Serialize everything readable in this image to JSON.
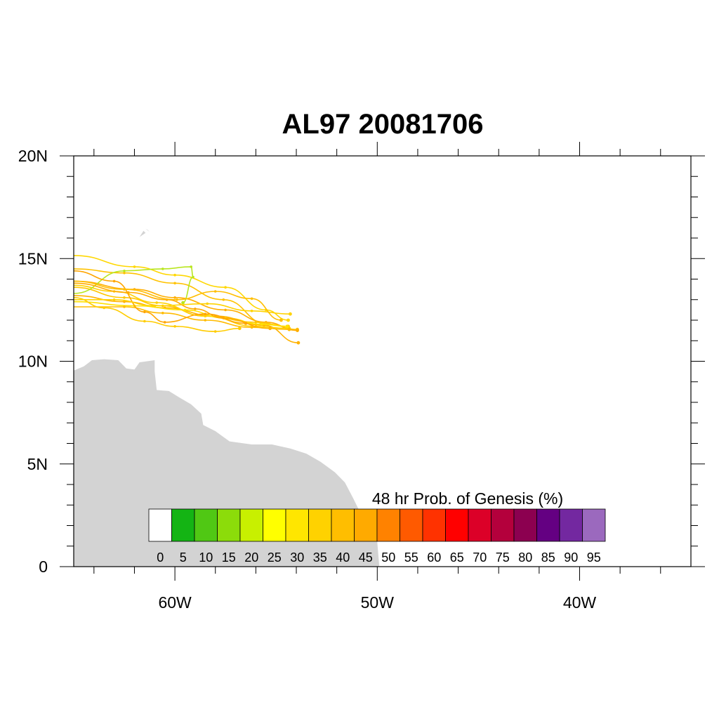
{
  "title": "AL97 20081706",
  "map": {
    "lon_range": [
      -65,
      -34.5
    ],
    "lat_range": [
      0,
      20
    ],
    "x_ticks": [
      {
        "lon": -60,
        "label": "60W"
      },
      {
        "lon": -50,
        "label": "50W"
      },
      {
        "lon": -40,
        "label": "40W"
      }
    ],
    "y_ticks": [
      {
        "lat": 0,
        "label": "0"
      },
      {
        "lat": 5,
        "label": "5N"
      },
      {
        "lat": 10,
        "label": "10N"
      },
      {
        "lat": 15,
        "label": "15N"
      },
      {
        "lat": 20,
        "label": "20N"
      }
    ],
    "land_color": "#d3d3d3",
    "land_outline": [
      [
        -65,
        9.55
      ],
      [
        -64.5,
        9.75
      ],
      [
        -64.1,
        10.05
      ],
      [
        -63.5,
        10.1
      ],
      [
        -62.8,
        10.05
      ],
      [
        -62.4,
        9.65
      ],
      [
        -62.0,
        9.6
      ],
      [
        -61.75,
        9.95
      ],
      [
        -61.0,
        10.05
      ],
      [
        -61.0,
        9.5
      ],
      [
        -60.9,
        8.6
      ],
      [
        -60.3,
        8.55
      ],
      [
        -59.8,
        8.25
      ],
      [
        -59.2,
        7.9
      ],
      [
        -58.7,
        7.45
      ],
      [
        -58.6,
        6.9
      ],
      [
        -58.0,
        6.6
      ],
      [
        -57.3,
        6.1
      ],
      [
        -56.2,
        5.95
      ],
      [
        -55.2,
        5.95
      ],
      [
        -54.3,
        5.75
      ],
      [
        -53.5,
        5.5
      ],
      [
        -52.8,
        5.1
      ],
      [
        -52.1,
        4.6
      ],
      [
        -51.6,
        4.1
      ],
      [
        -51.2,
        3.35
      ],
      [
        -50.8,
        2.55
      ],
      [
        -50.3,
        1.8
      ],
      [
        -50.0,
        1.2
      ],
      [
        -49.9,
        0
      ],
      [
        -65,
        0
      ]
    ],
    "islands": [
      [
        [
          -61.75,
          16.05
        ],
        [
          -61.55,
          16.35
        ],
        [
          -61.45,
          16.25
        ]
      ],
      [
        [
          -61.45,
          16.45
        ],
        [
          -61.35,
          16.4
        ],
        [
          -61.25,
          16.3
        ]
      ]
    ],
    "storm_tracks": [
      {
        "color": "#ffd700",
        "points": [
          [
            -65,
            15.15
          ],
          [
            -62,
            14.6
          ],
          [
            -60,
            14.2
          ],
          [
            -57.5,
            13.6
          ],
          [
            -55.5,
            12.5
          ],
          [
            -54.4,
            12.0
          ]
        ]
      },
      {
        "color": "#ffc200",
        "points": [
          [
            -65,
            14.5
          ],
          [
            -62.5,
            14.3
          ],
          [
            -60,
            13.8
          ],
          [
            -57.6,
            13.0
          ],
          [
            -55.4,
            11.8
          ],
          [
            -53.95,
            11.55
          ]
        ]
      },
      {
        "color": "#ffae00",
        "points": [
          [
            -65,
            13.9
          ],
          [
            -62,
            13.5
          ],
          [
            -60,
            13.1
          ],
          [
            -57.5,
            12.5
          ],
          [
            -55.5,
            11.9
          ],
          [
            -53.95,
            11.5
          ]
        ]
      },
      {
        "color": "#ffc600",
        "points": [
          [
            -65,
            13.6
          ],
          [
            -62.5,
            13.1
          ],
          [
            -60.6,
            12.7
          ],
          [
            -58.5,
            12.2
          ],
          [
            -56,
            11.9
          ],
          [
            -54.4,
            11.7
          ]
        ]
      },
      {
        "color": "#ffb200",
        "points": [
          [
            -65,
            13.2
          ],
          [
            -62.5,
            12.9
          ],
          [
            -60.5,
            12.6
          ],
          [
            -58,
            12.2
          ],
          [
            -55.6,
            11.75
          ],
          [
            -53.9,
            10.9
          ]
        ]
      },
      {
        "color": "#ffd100",
        "points": [
          [
            -65,
            13.7
          ],
          [
            -63,
            13.4
          ],
          [
            -60.9,
            12.85
          ],
          [
            -58.5,
            12.2
          ],
          [
            -56,
            11.7
          ],
          [
            -54.35,
            11.6
          ]
        ]
      },
      {
        "color": "#b8e61e",
        "points": [
          [
            -65,
            13.3
          ],
          [
            -62.5,
            14.4
          ],
          [
            -60.6,
            14.5
          ],
          [
            -59.2,
            14.6
          ],
          [
            -59.1,
            14.1
          ],
          [
            -59.6,
            12.85
          ]
        ]
      },
      {
        "color": "#ffe100",
        "points": [
          [
            -65,
            12.9
          ],
          [
            -62,
            12.7
          ],
          [
            -59.5,
            12.5
          ],
          [
            -57.5,
            12.1
          ],
          [
            -55.7,
            11.8
          ],
          [
            -54.45,
            11.7
          ]
        ]
      },
      {
        "color": "#ffaa00",
        "points": [
          [
            -65,
            13.8
          ],
          [
            -62.3,
            13.35
          ],
          [
            -60.4,
            13.0
          ],
          [
            -59,
            12.55
          ],
          [
            -57.6,
            12.1
          ],
          [
            -55.3,
            11.6
          ]
        ]
      },
      {
        "color": "#ffbb00",
        "points": [
          [
            -65,
            12.65
          ],
          [
            -62.5,
            12.65
          ],
          [
            -60.6,
            12.35
          ],
          [
            -58.5,
            12.0
          ],
          [
            -56.2,
            11.65
          ],
          [
            -54.35,
            11.55
          ]
        ]
      },
      {
        "color": "#ffcc00",
        "points": [
          [
            -65,
            13.1
          ],
          [
            -63.5,
            12.6
          ],
          [
            -61.5,
            11.95
          ],
          [
            -60,
            11.7
          ],
          [
            -58,
            11.45
          ],
          [
            -56.8,
            11.6
          ]
        ]
      },
      {
        "color": "#ffa500",
        "points": [
          [
            -65,
            14.4
          ],
          [
            -63,
            13.9
          ],
          [
            -61.5,
            12.4
          ],
          [
            -60.5,
            11.9
          ],
          [
            -58.5,
            12.3
          ],
          [
            -56.5,
            11.85
          ]
        ]
      },
      {
        "color": "#ffd300",
        "points": [
          [
            -65,
            13.0
          ],
          [
            -63,
            13.0
          ],
          [
            -61,
            12.7
          ],
          [
            -58.4,
            12.8
          ],
          [
            -56.2,
            12.45
          ],
          [
            -54.3,
            12.3
          ]
        ]
      },
      {
        "color": "#ffbe00",
        "points": [
          [
            -65,
            13.9
          ],
          [
            -62.5,
            13.5
          ],
          [
            -59.9,
            13.0
          ],
          [
            -58,
            13.4
          ],
          [
            -56.2,
            13.05
          ],
          [
            -54.75,
            12.0
          ]
        ]
      }
    ]
  },
  "colorbar": {
    "title": "48 hr Prob. of Genesis (%)",
    "labels": [
      "0",
      "5",
      "10",
      "15",
      "20",
      "25",
      "30",
      "35",
      "40",
      "45",
      "50",
      "55",
      "60",
      "65",
      "70",
      "75",
      "80",
      "85",
      "90",
      "95"
    ],
    "colors": [
      "#ffffff",
      "#14b414",
      "#50c814",
      "#8cdc0a",
      "#c8f000",
      "#ffff00",
      "#ffe600",
      "#ffd200",
      "#ffbe00",
      "#ffaa00",
      "#ff8200",
      "#ff5a00",
      "#ff3200",
      "#ff0000",
      "#dc0028",
      "#b4003c",
      "#8c0050",
      "#640082",
      "#7328a0",
      "#9b69be"
    ]
  }
}
